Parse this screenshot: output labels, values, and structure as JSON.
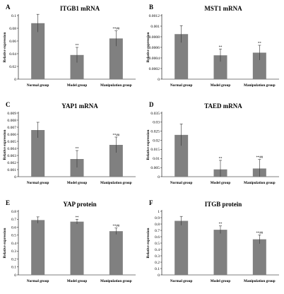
{
  "chart_data": [
    {
      "panel": "A",
      "type": "bar",
      "title": "ITGB1 mRNA",
      "ylabel": "Relative expression",
      "categories": [
        "Normal group",
        "Model group",
        "Manipulation group"
      ],
      "values": [
        0.088,
        0.038,
        0.064
      ],
      "errors": [
        0.014,
        0.012,
        0.012
      ],
      "annotations": [
        "",
        "**",
        "**##"
      ],
      "yticks": [
        "0",
        "0.02",
        "0.04",
        "0.06",
        "0.08",
        "0.1"
      ],
      "ylim": [
        0,
        0.1
      ]
    },
    {
      "panel": "B",
      "type": "bar",
      "title": "MST1 mRNA",
      "ylabel": "Relative expression",
      "categories": [
        "Normal group",
        "Model group",
        "Manipulation group"
      ],
      "values": [
        0.00085,
        0.00045,
        0.0005
      ],
      "errors": [
        0.00016,
        0.00012,
        0.00014
      ],
      "annotations": [
        "",
        "**",
        "**"
      ],
      "yticks": [
        "0",
        "0.0002",
        "0.0004",
        "0.0006",
        "0.0008",
        "0.001",
        "0.0012"
      ],
      "ylim": [
        0,
        0.0012
      ]
    },
    {
      "panel": "C",
      "type": "bar",
      "title": "YAP1 mRNA",
      "ylabel": "Relative expression",
      "categories": [
        "Normal group",
        "Model group",
        "Manipulation group"
      ],
      "values": [
        0.0066,
        0.0025,
        0.0045
      ],
      "errors": [
        0.0011,
        0.0012,
        0.0011
      ],
      "annotations": [
        "",
        "**",
        "**##"
      ],
      "yticks": [
        "0",
        "0.001",
        "0.002",
        "0.003",
        "0.004",
        "0.005",
        "0.006",
        "0.007",
        "0.008",
        "0.009"
      ],
      "ylim": [
        0,
        0.009
      ]
    },
    {
      "panel": "D",
      "type": "bar",
      "title": "TAED mRNA",
      "ylabel": "Relative expression",
      "categories": [
        "Normal group",
        "Model group",
        "Manipulation group"
      ],
      "values": [
        0.023,
        0.004,
        0.0045
      ],
      "errors": [
        0.006,
        0.005,
        0.005
      ],
      "annotations": [
        "",
        "**",
        "**##"
      ],
      "yticks": [
        "0",
        "0.005",
        "0.01",
        "0.015",
        "0.02",
        "0.025",
        "0.03",
        "0.035"
      ],
      "ylim": [
        0,
        0.035
      ]
    },
    {
      "panel": "E",
      "type": "bar",
      "title": "YAP protein",
      "ylabel": "Relative expression",
      "categories": [
        "Normal group",
        "Model group",
        "Manipulation group"
      ],
      "values": [
        0.69,
        0.67,
        0.55
      ],
      "errors": [
        0.04,
        0.03,
        0.04
      ],
      "annotations": [
        "",
        "**",
        "**##"
      ],
      "yticks": [
        "0",
        "0.1",
        "0.2",
        "0.3",
        "0.4",
        "0.5",
        "0.6",
        "0.7",
        "0.8"
      ],
      "ylim": [
        0,
        0.8
      ]
    },
    {
      "panel": "F",
      "type": "bar",
      "title": "ITGB protein",
      "ylabel": "Relative expression",
      "categories": [
        "Normal group",
        "Model group",
        "Manipulation group"
      ],
      "values": [
        0.85,
        0.71,
        0.56
      ],
      "errors": [
        0.07,
        0.06,
        0.07
      ],
      "annotations": [
        "",
        "**",
        "**##"
      ],
      "yticks": [
        "0",
        "0.1",
        "0.2",
        "0.3",
        "0.4",
        "0.5",
        "0.6",
        "0.7",
        "0.8",
        "0.9",
        "1"
      ],
      "ylim": [
        0,
        1
      ]
    }
  ],
  "colors": {
    "bar": "#808080",
    "axis": "#000000"
  }
}
